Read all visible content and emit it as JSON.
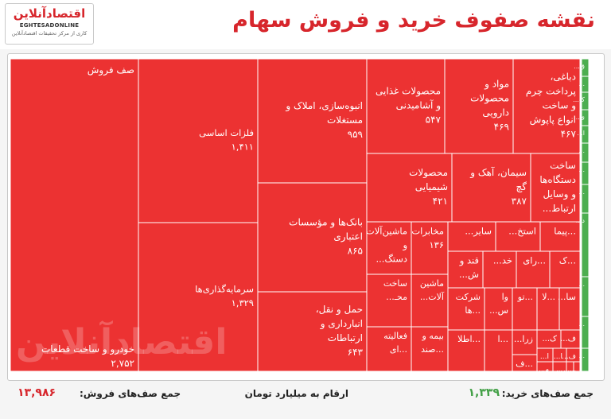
{
  "header": {
    "title": "نقشه صفوف خرید و فروش سهام",
    "logo_name": "اقتصادآنلاین",
    "logo_en": "EGHTESADONLINE",
    "logo_tagline": "کاری از مرکز تحقیقات اقتصادآنلاین"
  },
  "footer": {
    "buy_label": "جمع صف‌های خرید:",
    "buy_total": "۱,۳۳۹",
    "unit_note": "ارقام به میلیارد تومان",
    "sell_label": "جمع صف‌های فروش:",
    "sell_total": "۱۳,۹۸۶"
  },
  "watermark": "اقتصادآنلاین",
  "colors": {
    "sell": "#ec3232",
    "buy": "#4cae50",
    "accent": "#d7262c"
  },
  "chart_data": {
    "type": "treemap",
    "group_label": "صف فروش",
    "sell_total": 13986,
    "buy_total": 1339,
    "cells": [
      {
        "group": "sell",
        "name": "خودرو و ساخت قطعات",
        "value": "۲,۷۵۲"
      },
      {
        "group": "sell",
        "name": "فلزات اساسی",
        "value": "۱,۴۱۱"
      },
      {
        "group": "sell",
        "name": "سرمایه‌گذاری‌ها",
        "value": "۱,۳۲۹"
      },
      {
        "group": "sell",
        "name": "انبوه‌سازی، املاک و مستغلات",
        "value": "۹۵۹"
      },
      {
        "group": "sell",
        "name": "بانک‌ها و مؤسسات اعتباری",
        "value": "۸۶۵"
      },
      {
        "group": "sell",
        "name": "حمل و نقل، انبارداری و ارتباطات",
        "value": "۶۴۳"
      },
      {
        "group": "sell",
        "name": "محصولات غذایی و آشامیدنی",
        "value": "۵۴۷"
      },
      {
        "group": "sell",
        "name": "مواد و محصولات دارویی",
        "value": "۴۶۹"
      },
      {
        "group": "sell",
        "name": "دباغی، پرداخت چرم و ساخت انواع پاپوش",
        "value": "۴۶۷"
      },
      {
        "group": "sell",
        "name": "محصولات شیمیایی",
        "value": "۴۲۱"
      },
      {
        "group": "sell",
        "name": "سیمان، آهک و گچ",
        "value": "۳۸۷"
      },
      {
        "group": "sell",
        "name": "ساخت دستگاه‌ها و وسایل ارتباط...",
        "value": ""
      },
      {
        "group": "sell",
        "name": "ماشین‌آلات و دستگ...",
        "value": ""
      },
      {
        "group": "sell",
        "name": "مخابرات",
        "value": "۱۳۶"
      },
      {
        "group": "sell",
        "name": "سایر...",
        "value": ""
      },
      {
        "group": "sell",
        "name": "استخ...",
        "value": ""
      },
      {
        "group": "sell",
        "name": "...پیما",
        "value": ""
      },
      {
        "group": "sell",
        "name": "قند و ش...",
        "value": ""
      },
      {
        "group": "sell",
        "name": "خد...",
        "value": ""
      },
      {
        "group": "sell",
        "name": "...رای",
        "value": ""
      },
      {
        "group": "sell",
        "name": "...ک",
        "value": ""
      },
      {
        "group": "sell",
        "name": "ساخت محـ...",
        "value": ""
      },
      {
        "group": "sell",
        "name": "ماشین آلات...",
        "value": ""
      },
      {
        "group": "sell",
        "name": "شرکت ...ها",
        "value": ""
      },
      {
        "group": "sell",
        "name": "وا س...",
        "value": ""
      },
      {
        "group": "sell",
        "name": "...تو",
        "value": ""
      },
      {
        "group": "sell",
        "name": "...لا",
        "value": ""
      },
      {
        "group": "sell",
        "name": "سا...",
        "value": ""
      },
      {
        "group": "sell",
        "name": "فعالیته ...ای",
        "value": ""
      },
      {
        "group": "sell",
        "name": "بیمه و ...صند",
        "value": ""
      },
      {
        "group": "sell",
        "name": "...اطلا",
        "value": ""
      },
      {
        "group": "sell",
        "name": "...ا",
        "value": ""
      },
      {
        "group": "sell",
        "name": "زرا...",
        "value": ""
      },
      {
        "group": "sell",
        "name": "...ف",
        "value": ""
      },
      {
        "group": "sell",
        "name": "ک...",
        "value": ""
      },
      {
        "group": "sell",
        "name": "ف...",
        "value": ""
      },
      {
        "group": "sell",
        "name": "ا...",
        "value": ""
      },
      {
        "group": "sell",
        "name": "ا...",
        "value": ""
      },
      {
        "group": "sell",
        "name": "ف...",
        "value": ""
      },
      {
        "group": "sell",
        "name": "م...",
        "value": ""
      },
      {
        "group": "sell",
        "name": "...",
        "value": ""
      },
      {
        "group": "sell",
        "name": "...",
        "value": ""
      },
      {
        "group": "sell",
        "name": "...",
        "value": ""
      },
      {
        "group": "sell",
        "name": "...",
        "value": ""
      },
      {
        "group": "buy",
        "name": "ق...",
        "value": ""
      },
      {
        "group": "buy",
        "name": "...",
        "value": ""
      },
      {
        "group": "buy",
        "name": "ک...",
        "value": ""
      },
      {
        "group": "buy",
        "name": "ی...",
        "value": ""
      },
      {
        "group": "buy",
        "name": "ا...",
        "value": ""
      },
      {
        "group": "buy",
        "name": "...",
        "value": ""
      },
      {
        "group": "buy",
        "name": "...",
        "value": ""
      },
      {
        "group": "buy",
        "name": "...",
        "value": ""
      },
      {
        "group": "buy",
        "name": "د...",
        "value": ""
      },
      {
        "group": "buy",
        "name": "...",
        "value": ""
      },
      {
        "group": "buy",
        "name": "...",
        "value": ""
      },
      {
        "group": "buy",
        "name": "...",
        "value": ""
      }
    ]
  }
}
